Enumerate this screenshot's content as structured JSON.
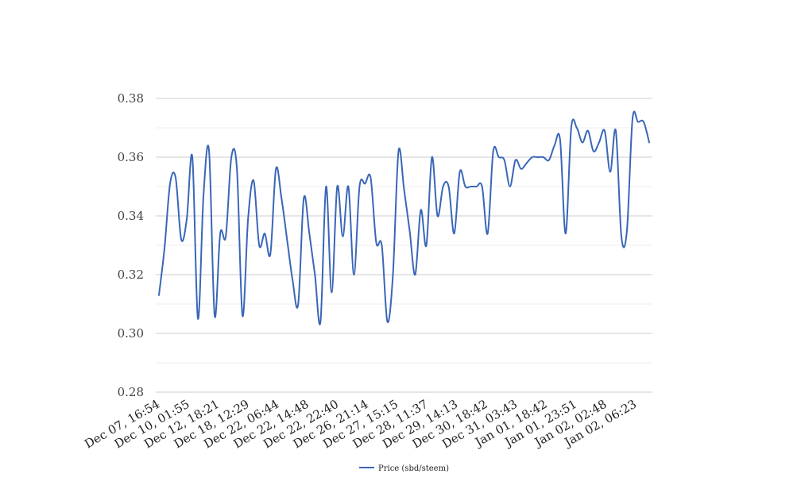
{
  "chart_data": {
    "type": "line",
    "ylim": [
      0.28,
      0.38
    ],
    "yticks": [
      "0.38",
      "0.36",
      "0.34",
      "0.32",
      "0.30",
      "0.28"
    ],
    "ytick_values": [
      0.38,
      0.36,
      0.34,
      0.32,
      0.3,
      0.28
    ],
    "minor_grid_values": [
      0.37,
      0.35,
      0.33,
      0.31,
      0.29
    ],
    "grid": true,
    "legend_position": "bottom-center",
    "xlabels": [
      "Dec 07, 16:54",
      "Dec 10, 01:55",
      "Dec 12, 18:21",
      "Dec 18, 12:29",
      "Dec 22, 06:44",
      "Dec 22, 14:48",
      "Dec 22, 22:40",
      "Dec 26, 21:14",
      "Dec 27, 15:15",
      "Dec 28, 11:37",
      "Dec 29, 14:13",
      "Dec 30, 18:42",
      "Dec 31, 03:43",
      "Jan 01, 18:42",
      "Jan 01, 23:51",
      "Jan 02, 02:48",
      "Jan 02, 06:23"
    ],
    "series": [
      {
        "name": "Price (sbd/steem)",
        "color": "#3a66b8",
        "values": [
          0.313,
          0.329,
          0.351,
          0.353,
          0.332,
          0.339,
          0.36,
          0.305,
          0.347,
          0.362,
          0.306,
          0.334,
          0.333,
          0.36,
          0.356,
          0.306,
          0.339,
          0.352,
          0.33,
          0.334,
          0.327,
          0.356,
          0.346,
          0.332,
          0.318,
          0.31,
          0.346,
          0.334,
          0.32,
          0.304,
          0.35,
          0.314,
          0.35,
          0.333,
          0.35,
          0.32,
          0.35,
          0.351,
          0.353,
          0.331,
          0.33,
          0.304,
          0.32,
          0.362,
          0.349,
          0.335,
          0.32,
          0.342,
          0.33,
          0.36,
          0.34,
          0.35,
          0.35,
          0.334,
          0.355,
          0.35,
          0.35,
          0.35,
          0.35,
          0.334,
          0.362,
          0.36,
          0.359,
          0.35,
          0.359,
          0.356,
          0.358,
          0.36,
          0.36,
          0.36,
          0.359,
          0.364,
          0.366,
          0.334,
          0.37,
          0.37,
          0.365,
          0.369,
          0.362,
          0.365,
          0.369,
          0.355,
          0.369,
          0.333,
          0.335,
          0.373,
          0.372,
          0.372,
          0.365
        ]
      }
    ]
  }
}
